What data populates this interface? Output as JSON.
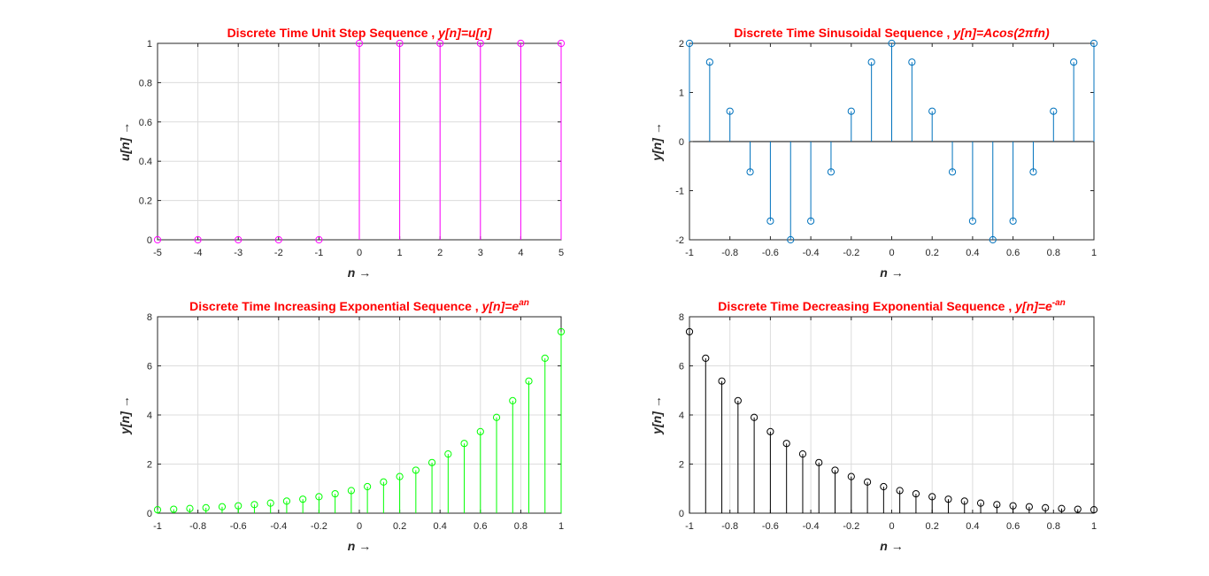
{
  "chart_data": [
    {
      "type": "stem",
      "title": "Discrete Time Unit Step Sequence , ",
      "title_expr": "y[n]=u[n]",
      "title_sup": "",
      "xlabel": "n →",
      "ylabel": "u[n] →",
      "xlim": [
        -5,
        5
      ],
      "ylim": [
        0,
        1
      ],
      "xticks": [
        -5,
        -4,
        -3,
        -2,
        -1,
        0,
        1,
        2,
        3,
        4,
        5
      ],
      "yticks": [
        0,
        0.2,
        0.4,
        0.6,
        0.8,
        1
      ],
      "grid": true,
      "color": "#ff00ff",
      "x": [
        -5,
        -4,
        -3,
        -2,
        -1,
        0,
        1,
        2,
        3,
        4,
        5
      ],
      "y": [
        0,
        0,
        0,
        0,
        0,
        1,
        1,
        1,
        1,
        1,
        1
      ]
    },
    {
      "type": "stem",
      "title": "Discrete Time Sinusoidal Sequence , ",
      "title_expr": "y[n]=Acos(2πfn)",
      "title_sup": "",
      "xlabel": "n →",
      "ylabel": "y[n] →",
      "xlim": [
        -1,
        1
      ],
      "ylim": [
        -2,
        2
      ],
      "xticks": [
        -1,
        -0.8,
        -0.6,
        -0.4,
        -0.2,
        0,
        0.2,
        0.4,
        0.6,
        0.8,
        1
      ],
      "yticks": [
        -2,
        -1,
        0,
        1,
        2
      ],
      "grid": false,
      "color": "#0072bd",
      "x": [
        -1,
        -0.9,
        -0.8,
        -0.7,
        -0.6,
        -0.5,
        -0.4,
        -0.3,
        -0.2,
        -0.1,
        0,
        0.1,
        0.2,
        0.3,
        0.4,
        0.5,
        0.6,
        0.7,
        0.8,
        0.9,
        1
      ],
      "y": [
        2,
        1.618,
        0.618,
        -0.618,
        -1.618,
        -2,
        -1.618,
        -0.618,
        0.618,
        1.618,
        2,
        1.618,
        0.618,
        -0.618,
        -1.618,
        -2,
        -1.618,
        -0.618,
        0.618,
        1.618,
        2
      ]
    },
    {
      "type": "stem",
      "title": "Discrete Time Increasing Exponential Sequence , ",
      "title_expr": "y[n]=e",
      "title_sup": "an",
      "xlabel": "n →",
      "ylabel": "y[n] →",
      "xlim": [
        -1,
        1
      ],
      "ylim": [
        0,
        8
      ],
      "xticks": [
        -1,
        -0.8,
        -0.6,
        -0.4,
        -0.2,
        0,
        0.2,
        0.4,
        0.6,
        0.8,
        1
      ],
      "yticks": [
        0,
        2,
        4,
        6,
        8
      ],
      "grid": true,
      "color": "#00ff00",
      "x": [
        -1,
        -0.92,
        -0.84,
        -0.76,
        -0.68,
        -0.6,
        -0.52,
        -0.44,
        -0.36,
        -0.28,
        -0.2,
        -0.12,
        -0.04,
        0.04,
        0.12,
        0.2,
        0.28,
        0.36,
        0.44,
        0.52,
        0.6,
        0.68,
        0.76,
        0.84,
        0.92,
        1
      ],
      "y": [
        0.14,
        0.16,
        0.19,
        0.22,
        0.26,
        0.3,
        0.35,
        0.41,
        0.49,
        0.57,
        0.67,
        0.79,
        0.92,
        1.08,
        1.27,
        1.49,
        1.75,
        2.06,
        2.41,
        2.84,
        3.32,
        3.9,
        4.58,
        5.38,
        6.31,
        7.39
      ]
    },
    {
      "type": "stem",
      "title": "Discrete Time Decreasing Exponential Sequence , ",
      "title_expr": "y[n]=e",
      "title_sup": "-an",
      "xlabel": "n →",
      "ylabel": "y[n] →",
      "xlim": [
        -1,
        1
      ],
      "ylim": [
        0,
        8
      ],
      "xticks": [
        -1,
        -0.8,
        -0.6,
        -0.4,
        -0.2,
        0,
        0.2,
        0.4,
        0.6,
        0.8,
        1
      ],
      "yticks": [
        0,
        2,
        4,
        6,
        8
      ],
      "grid": true,
      "color": "#000000",
      "x": [
        -1,
        -0.92,
        -0.84,
        -0.76,
        -0.68,
        -0.6,
        -0.52,
        -0.44,
        -0.36,
        -0.28,
        -0.2,
        -0.12,
        -0.04,
        0.04,
        0.12,
        0.2,
        0.28,
        0.36,
        0.44,
        0.52,
        0.6,
        0.68,
        0.76,
        0.84,
        0.92,
        1
      ],
      "y": [
        7.39,
        6.31,
        5.38,
        4.58,
        3.9,
        3.32,
        2.84,
        2.41,
        2.06,
        1.75,
        1.49,
        1.27,
        1.08,
        0.92,
        0.79,
        0.67,
        0.57,
        0.49,
        0.41,
        0.35,
        0.3,
        0.26,
        0.22,
        0.19,
        0.16,
        0.14
      ]
    }
  ]
}
